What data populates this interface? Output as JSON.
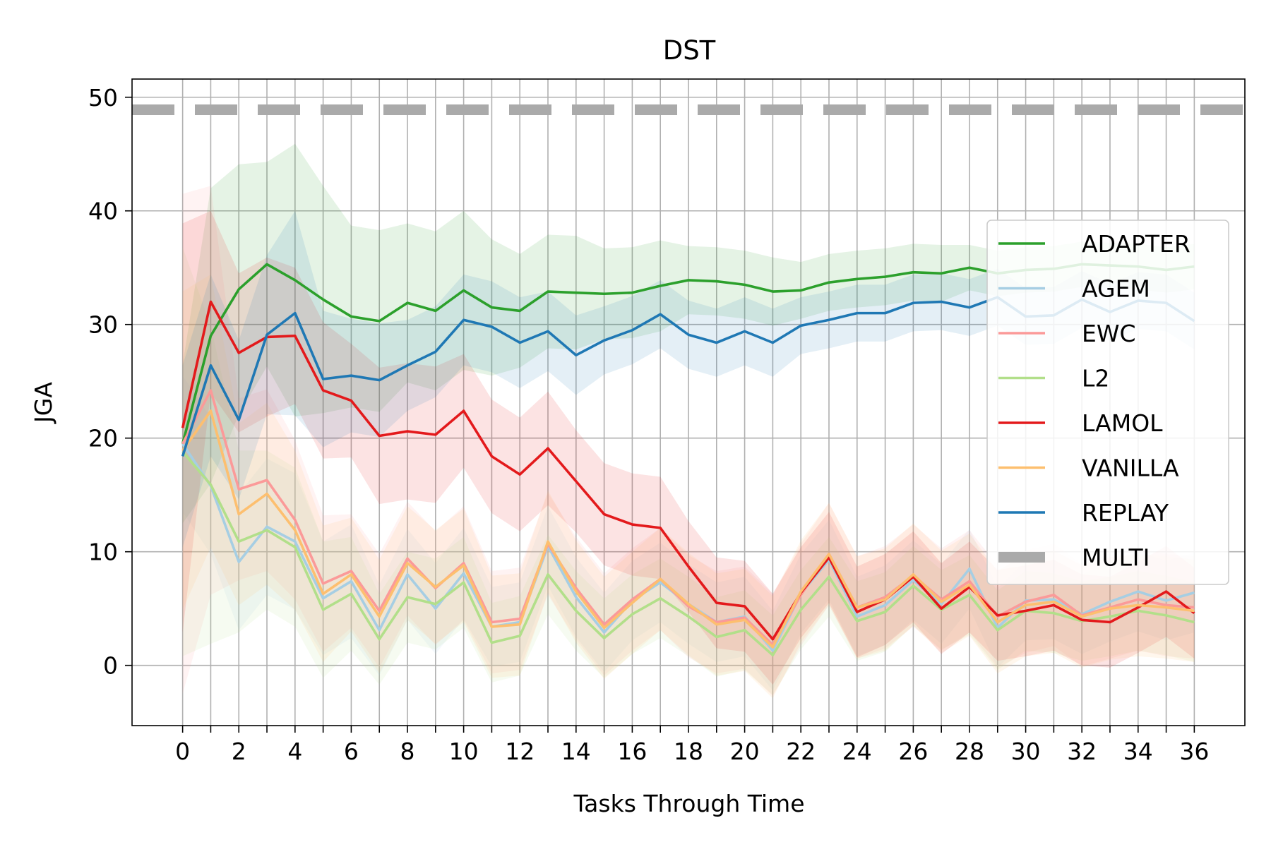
{
  "chart_data": {
    "type": "line",
    "title": "DST",
    "xlabel": "Tasks Through Time",
    "ylabel": "JGA",
    "xlim": [
      -1.8,
      37.8
    ],
    "ylim": [
      -5.3,
      51.6
    ],
    "xticks": [
      0,
      2,
      4,
      6,
      8,
      10,
      12,
      14,
      16,
      18,
      20,
      22,
      24,
      26,
      28,
      30,
      32,
      34,
      36
    ],
    "yticks": [
      0,
      10,
      20,
      30,
      40,
      50
    ],
    "grid": true,
    "legend": "right",
    "x": [
      0,
      1,
      2,
      3,
      4,
      5,
      6,
      7,
      8,
      9,
      10,
      11,
      12,
      13,
      14,
      15,
      16,
      17,
      18,
      19,
      20,
      21,
      22,
      23,
      24,
      25,
      26,
      27,
      28,
      29,
      30,
      31,
      32,
      33,
      34,
      35,
      36
    ],
    "series": [
      {
        "name": "ADAPTER",
        "color": "#2ca02c",
        "values": [
          19.5,
          29.0,
          33.1,
          35.3,
          33.9,
          32.2,
          30.7,
          30.3,
          31.9,
          31.2,
          33.0,
          31.5,
          31.2,
          32.9,
          32.8,
          32.7,
          32.8,
          33.4,
          33.9,
          33.8,
          33.5,
          32.9,
          33.0,
          33.7,
          34.0,
          34.2,
          34.6,
          34.5,
          35.0,
          34.5,
          34.8,
          34.9,
          35.3,
          35.2,
          35.1,
          34.8,
          35.1
        ],
        "band": [
          7,
          13,
          11,
          9,
          12,
          10,
          8,
          8,
          7,
          7,
          7,
          6,
          5,
          5,
          5,
          4,
          4,
          4,
          3,
          3,
          3,
          3,
          2.5,
          2.5,
          2.5,
          2.5,
          2.5,
          2.5,
          2,
          2,
          2,
          2,
          2,
          2,
          2,
          2,
          2
        ]
      },
      {
        "name": "AGEM",
        "color": "#a6cee3",
        "values": [
          19.5,
          15.8,
          9.1,
          12.2,
          10.9,
          5.9,
          7.4,
          3.1,
          8.0,
          5.0,
          8.1,
          3.4,
          3.8,
          10.5,
          6.0,
          2.9,
          5.7,
          7.3,
          5.4,
          3.8,
          4.3,
          1.3,
          6.3,
          9.3,
          4.3,
          5.3,
          7.5,
          5.4,
          8.5,
          3.3,
          5.7,
          5.8,
          4.5,
          5.6,
          6.5,
          5.7,
          6.4
        ],
        "band": [
          6,
          6,
          6,
          6,
          6,
          5,
          5,
          4,
          4,
          4,
          4,
          3.5,
          3.5,
          3.5,
          3.5,
          3.5,
          3.5,
          3.5,
          3.5,
          3.5,
          3.5,
          3.5,
          3.5,
          3.5,
          3.5,
          3.5,
          3.5,
          3.5,
          3.5,
          3.5,
          3.5,
          3.5,
          3.5,
          3.5,
          3.5,
          3.5,
          3.5
        ]
      },
      {
        "name": "EWC",
        "color": "#fb9a99",
        "values": [
          19.5,
          24.2,
          15.5,
          16.3,
          12.8,
          7.2,
          8.3,
          4.8,
          9.4,
          6.8,
          9.0,
          3.8,
          4.1,
          10.7,
          6.8,
          3.6,
          5.8,
          7.6,
          5.2,
          3.8,
          4.2,
          1.8,
          6.2,
          9.8,
          5.1,
          6.0,
          7.9,
          5.8,
          7.4,
          4.3,
          5.6,
          6.2,
          4.4,
          5.1,
          5.8,
          5.3,
          5.1
        ],
        "band": [
          22,
          18,
          8,
          8,
          7,
          6,
          5,
          5,
          5,
          5,
          5,
          4.5,
          4.5,
          4.5,
          4.5,
          4.5,
          4.5,
          4.5,
          4.5,
          4.5,
          4.5,
          4.5,
          4.5,
          4.5,
          4.5,
          4.5,
          4.5,
          4.5,
          4.5,
          4.5,
          4.5,
          4.5,
          4.5,
          4.5,
          4.5,
          4.5,
          4.5
        ]
      },
      {
        "name": "L2",
        "color": "#b2df8a",
        "values": [
          18.8,
          15.9,
          10.9,
          11.9,
          10.4,
          4.9,
          6.3,
          2.3,
          6.0,
          5.4,
          7.3,
          2.0,
          2.6,
          8.0,
          4.8,
          2.4,
          4.5,
          5.9,
          4.3,
          2.5,
          3.1,
          0.9,
          4.9,
          7.8,
          3.9,
          4.7,
          7.0,
          4.9,
          6.2,
          3.1,
          4.8,
          4.6,
          3.9,
          4.3,
          4.8,
          4.4,
          3.8
        ],
        "band": [
          18,
          14,
          8,
          7,
          7,
          6,
          5,
          4,
          4,
          4,
          4,
          3.5,
          3.5,
          3.5,
          3.5,
          3.5,
          3.5,
          3.5,
          3.5,
          3.5,
          3.5,
          3.5,
          3.5,
          3.5,
          3.5,
          3.5,
          3.5,
          3.5,
          3.5,
          3.5,
          3.5,
          3.5,
          3.5,
          3.5,
          3.5,
          3.5,
          3.5
        ]
      },
      {
        "name": "LAMOL",
        "color": "#e31a1c",
        "values": [
          20.9,
          32.0,
          27.5,
          28.9,
          29.0,
          24.2,
          23.3,
          20.2,
          20.6,
          20.3,
          22.4,
          18.4,
          16.8,
          19.1,
          16.2,
          13.3,
          12.4,
          12.1,
          8.7,
          5.5,
          5.2,
          2.3,
          6.4,
          9.5,
          4.7,
          5.8,
          7.8,
          5.0,
          6.9,
          4.4,
          4.8,
          5.3,
          4.0,
          3.8,
          5.1,
          6.5,
          4.6
        ],
        "band": [
          18,
          8,
          7,
          7,
          6,
          6,
          5,
          6,
          6,
          6,
          5,
          5,
          5,
          5,
          4.5,
          4.5,
          4.5,
          4.5,
          4,
          4,
          4,
          4,
          4,
          4,
          4,
          4,
          4,
          4,
          4,
          4,
          4,
          4,
          4,
          4,
          4,
          4,
          4
        ]
      },
      {
        "name": "VANILLA",
        "color": "#fdbf6f",
        "values": [
          18.9,
          22.4,
          13.3,
          15.1,
          11.9,
          6.3,
          8.0,
          4.3,
          9.0,
          6.9,
          8.8,
          3.4,
          3.6,
          10.9,
          6.5,
          3.3,
          5.5,
          7.6,
          5.4,
          3.6,
          4.0,
          1.6,
          6.5,
          9.8,
          5.1,
          5.8,
          8.0,
          5.6,
          7.1,
          3.8,
          5.3,
          5.6,
          4.3,
          5.0,
          5.3,
          5.1,
          4.8
        ],
        "band": [
          14,
          12,
          8,
          8,
          7,
          6,
          5,
          5,
          5,
          5,
          5,
          4.5,
          4.5,
          4.5,
          4.5,
          4.5,
          4.5,
          4.5,
          4.5,
          4.5,
          4.5,
          4.5,
          4.5,
          4.5,
          4.5,
          4.5,
          4.5,
          4.5,
          4.5,
          4.5,
          4.5,
          4.5,
          4.5,
          4.5,
          4.5,
          4.5,
          4.5
        ]
      },
      {
        "name": "REPLAY",
        "color": "#1f78b4",
        "values": [
          18.4,
          26.4,
          21.6,
          29.1,
          31.0,
          25.2,
          25.5,
          25.1,
          26.4,
          27.6,
          30.4,
          29.8,
          28.4,
          29.4,
          27.3,
          28.6,
          29.5,
          30.9,
          29.1,
          28.4,
          29.4,
          28.4,
          29.9,
          30.4,
          31.0,
          31.0,
          31.9,
          32.0,
          31.5,
          32.4,
          30.7,
          30.8,
          32.2,
          31.1,
          32.1,
          31.9,
          30.3
        ],
        "band": [
          8,
          8,
          7,
          7,
          9,
          6,
          5,
          5,
          4,
          4,
          4,
          4,
          4,
          3.5,
          3.5,
          3,
          3,
          3,
          3,
          3,
          3,
          3,
          2.5,
          2.5,
          2.5,
          2.5,
          2.5,
          2.5,
          2.5,
          2.5,
          2.5,
          2.5,
          2.5,
          2.5,
          2.5,
          2.5,
          2.5
        ]
      }
    ],
    "reference_lines": [
      {
        "name": "MULTI",
        "color": "#aaaaaa",
        "y": 48.9,
        "style": "dashed"
      }
    ]
  }
}
